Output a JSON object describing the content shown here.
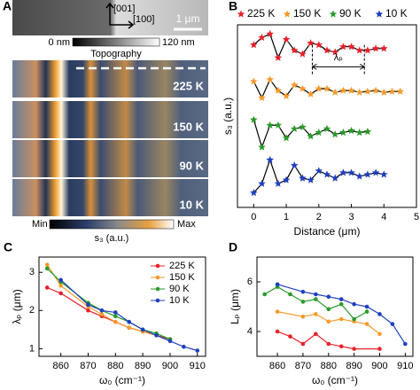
{
  "panel_a": {
    "panel": "A",
    "direction_y": "[001]",
    "direction_x": "[100]",
    "scale_bar": "1 μm",
    "topo_min": "0 nm",
    "topo_max": "120 nm",
    "topo_label": "Topography",
    "images": [
      "225 K",
      "150 K",
      "90 K",
      "10 K"
    ],
    "s3_min": "Min",
    "s3_max": "Max",
    "s3_label": "s₃ (a.u.)"
  },
  "chart_data": [
    {
      "type": "line",
      "panel": "B",
      "marker": "star",
      "line_color": "#000000",
      "legend": "top",
      "annotation": "λₚ",
      "x_label": "Distance (μm)",
      "y_label": "s₃ (a.u.)",
      "xlim": [
        -0.5,
        5
      ],
      "xticks": [
        0,
        1,
        2,
        3,
        4,
        5
      ],
      "ylim": [
        0,
        10
      ],
      "series": [
        {
          "name": "225 K",
          "color": "#e8202a",
          "x": [
            0,
            0.25,
            0.5,
            0.75,
            1,
            1.25,
            1.5,
            1.75,
            2,
            2.25,
            2.5,
            2.75,
            3,
            3.25,
            3.5,
            3.75,
            4
          ],
          "values": [
            8.9,
            9.3,
            9.5,
            8.2,
            9.2,
            8.6,
            8.4,
            9.0,
            8.9,
            8.6,
            8.5,
            8.8,
            8.8,
            8.6,
            8.6,
            8.7,
            8.7
          ]
        },
        {
          "name": "150 K",
          "color": "#f39a2b",
          "x": [
            0,
            0.25,
            0.5,
            0.75,
            1,
            1.25,
            1.5,
            1.75,
            2,
            2.25,
            2.5,
            2.75,
            3,
            3.25,
            3.5,
            3.75,
            4,
            4.25,
            4.5
          ],
          "values": [
            6.9,
            6.0,
            7.0,
            6.4,
            6.1,
            6.7,
            6.5,
            6.2,
            6.5,
            6.5,
            6.3,
            6.4,
            6.4,
            6.3,
            6.35,
            6.4,
            6.3,
            6.35,
            6.35
          ]
        },
        {
          "name": "90 K",
          "color": "#2a9a2a",
          "x": [
            0,
            0.25,
            0.5,
            0.75,
            1,
            1.25,
            1.5,
            1.75,
            2,
            2.25,
            2.5,
            2.75,
            3,
            3.25,
            3.5
          ],
          "values": [
            4.8,
            3.3,
            4.5,
            4.5,
            3.8,
            4.3,
            4.4,
            3.9,
            4.1,
            4.3,
            4.0,
            4.1,
            4.2,
            4.1,
            4.15
          ]
        },
        {
          "name": "10 K",
          "color": "#1f3fbf",
          "x": [
            0,
            0.25,
            0.5,
            0.75,
            1,
            1.25,
            1.5,
            1.75,
            2,
            2.25,
            2.5,
            2.75,
            3,
            3.25,
            3.5,
            3.75,
            4
          ],
          "values": [
            0.8,
            1.3,
            2.6,
            1.3,
            1.5,
            2.3,
            1.6,
            1.5,
            2.0,
            1.8,
            1.6,
            1.9,
            1.9,
            1.7,
            1.8,
            1.9,
            1.8
          ]
        }
      ]
    },
    {
      "type": "line",
      "panel": "C",
      "marker": "circle",
      "legend": "upper right",
      "x_label": "ω₀ (cm⁻¹)",
      "y_label": "λₚ (μm)",
      "xlim": [
        852,
        913
      ],
      "xticks": [
        860,
        870,
        880,
        890,
        900,
        910
      ],
      "ylim": [
        0.8,
        3.4
      ],
      "yticks": [
        1,
        2,
        3
      ],
      "series": [
        {
          "name": "225 K",
          "color": "#e8202a",
          "x": [
            855,
            860,
            870,
            875,
            880,
            885,
            890,
            895,
            900
          ],
          "values": [
            2.6,
            2.45,
            2.0,
            1.85,
            1.7,
            1.55,
            1.45,
            1.35,
            1.25
          ]
        },
        {
          "name": "150 K",
          "color": "#f39a2b",
          "x": [
            855,
            860,
            870,
            875,
            880,
            885,
            890,
            895,
            900
          ],
          "values": [
            3.2,
            2.65,
            2.1,
            1.9,
            1.7,
            1.55,
            1.45,
            1.35,
            1.2
          ]
        },
        {
          "name": "90 K",
          "color": "#2a9a2a",
          "x": [
            855,
            860,
            870,
            875,
            880,
            885,
            890,
            895,
            900
          ],
          "values": [
            3.1,
            2.75,
            2.2,
            2.0,
            1.85,
            1.7,
            1.5,
            1.4,
            1.25
          ]
        },
        {
          "name": "10 K",
          "color": "#1f3fbf",
          "x": [
            860,
            870,
            875,
            880,
            885,
            890,
            895,
            900,
            905,
            910
          ],
          "values": [
            2.8,
            2.15,
            2.0,
            1.95,
            1.7,
            1.5,
            1.35,
            1.2,
            1.05,
            0.95
          ]
        }
      ]
    },
    {
      "type": "line",
      "panel": "D",
      "marker": "circle",
      "x_label": "ω₀ (cm⁻¹)",
      "y_label": "Lₚ (μm)",
      "xlim": [
        852,
        913
      ],
      "xticks": [
        860,
        870,
        880,
        890,
        900,
        910
      ],
      "ylim": [
        3,
        7
      ],
      "yticks": [
        4,
        6
      ],
      "series": [
        {
          "color": "#e8202a",
          "x": [
            860,
            865,
            870,
            875,
            880,
            885,
            890,
            900
          ],
          "values": [
            4.0,
            3.8,
            3.5,
            3.9,
            3.5,
            3.4,
            3.3,
            3.3
          ]
        },
        {
          "color": "#f39a2b",
          "x": [
            860,
            870,
            875,
            880,
            885,
            890,
            895,
            900
          ],
          "values": [
            4.8,
            4.6,
            4.7,
            4.4,
            4.5,
            4.4,
            4.3,
            3.9
          ]
        },
        {
          "color": "#2a9a2a",
          "x": [
            855,
            860,
            865,
            870,
            875,
            880,
            885,
            890,
            895
          ],
          "values": [
            5.5,
            5.8,
            5.5,
            5.2,
            5.3,
            4.9,
            5.1,
            4.5,
            4.8
          ]
        },
        {
          "color": "#1f3fbf",
          "x": [
            860,
            870,
            875,
            880,
            885,
            890,
            895,
            900,
            905,
            910
          ],
          "values": [
            5.9,
            5.6,
            5.5,
            5.4,
            5.3,
            5.1,
            5.0,
            4.7,
            4.3,
            3.5
          ]
        }
      ]
    }
  ]
}
